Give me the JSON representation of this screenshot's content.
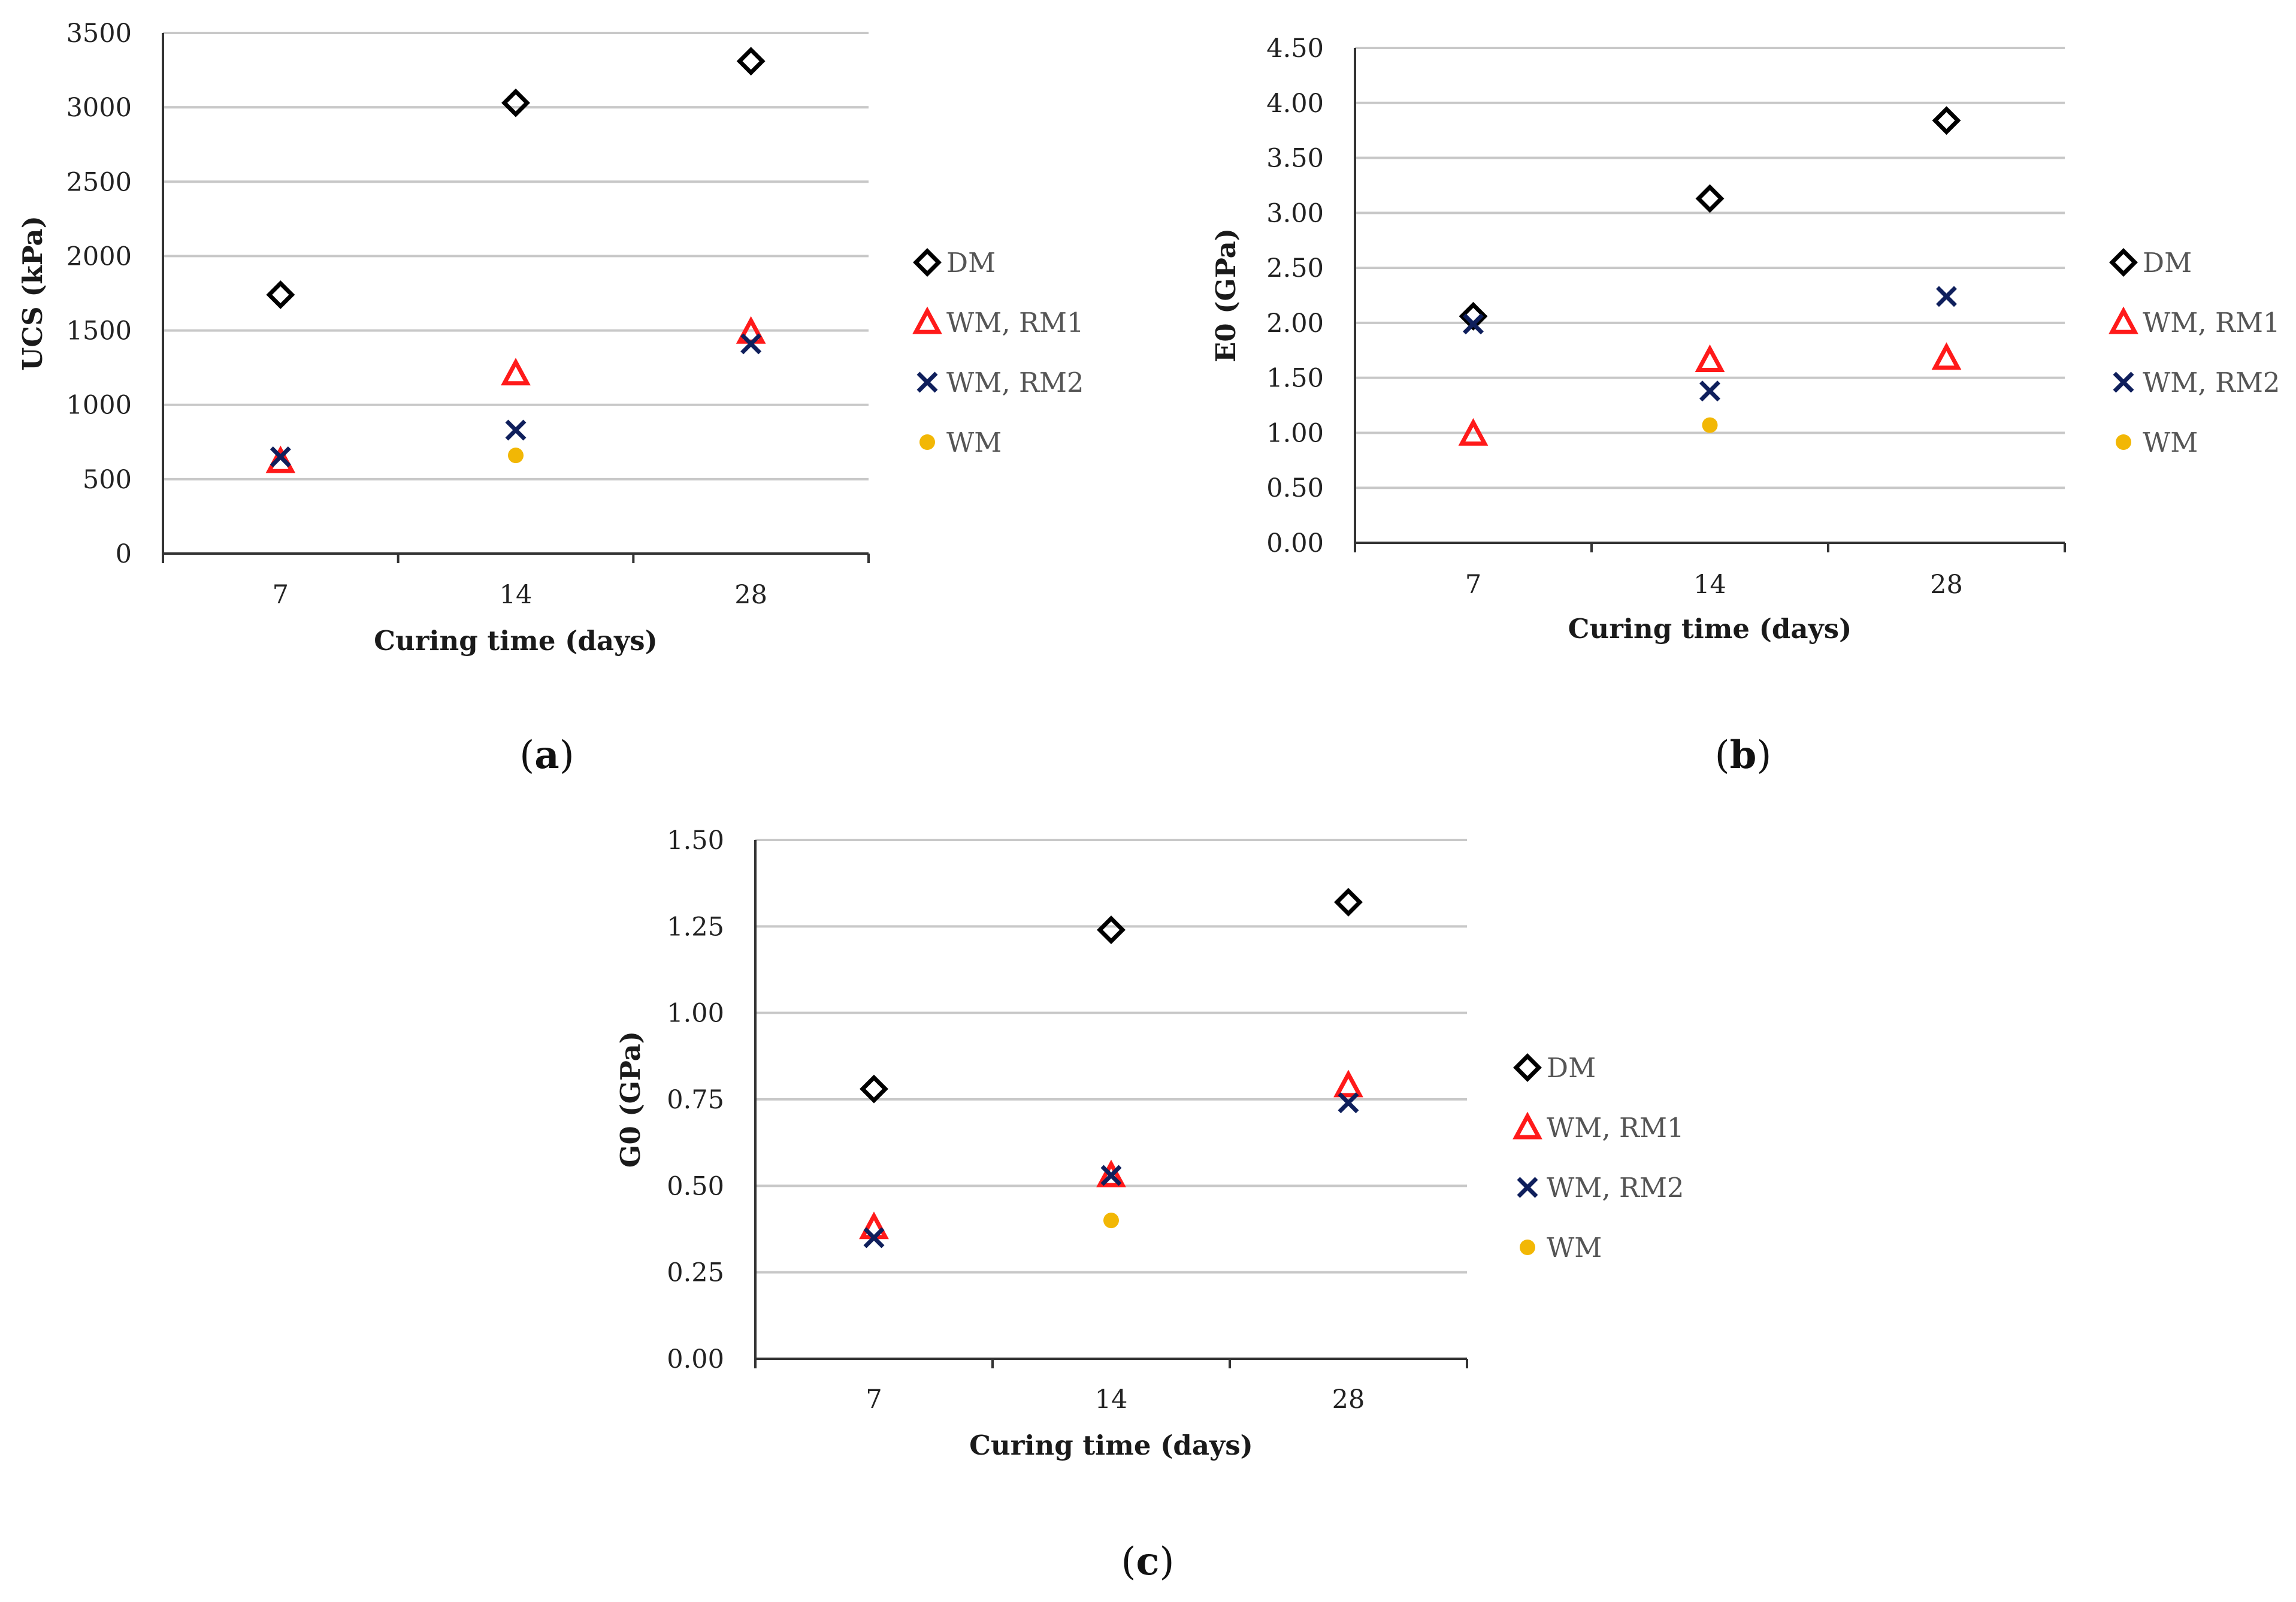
{
  "colors": {
    "DM": "#000000",
    "WM_RM1": "#ff1a1a",
    "WM_RM2": "#0f1f5c",
    "WM": "#f2b705",
    "grid": "#c8c8c8",
    "axis": "#333333"
  },
  "chart_data": [
    {
      "type": "scatter",
      "panel_label": "(a)",
      "panel_letter": "a",
      "xlabel": "Curing time (days)",
      "ylabel": "UCS (kPa)",
      "categories": [
        "7",
        "14",
        "28"
      ],
      "ylim": [
        0,
        3500
      ],
      "yticks": [
        "0",
        "500",
        "1000",
        "1500",
        "2000",
        "2500",
        "3000",
        "3500"
      ],
      "series": [
        {
          "name": "DM",
          "marker": "diamond",
          "values": [
            1740,
            3030,
            3310
          ]
        },
        {
          "name": "WM, RM1",
          "marker": "triangle",
          "values": [
            620,
            1210,
            1490
          ]
        },
        {
          "name": "WM, RM2",
          "marker": "cross",
          "values": [
            650,
            830,
            1410
          ]
        },
        {
          "name": "WM",
          "marker": "dot",
          "values": [
            null,
            660,
            null
          ]
        }
      ]
    },
    {
      "type": "scatter",
      "panel_label": "(b)",
      "panel_letter": "b",
      "xlabel": "Curing time (days)",
      "ylabel": "E0 (GPa)",
      "categories": [
        "7",
        "14",
        "28"
      ],
      "ylim": [
        0,
        4.5
      ],
      "yticks": [
        "0.00",
        "0.50",
        "1.00",
        "1.50",
        "2.00",
        "2.50",
        "3.00",
        "3.50",
        "4.00",
        "4.50"
      ],
      "series": [
        {
          "name": "DM",
          "marker": "diamond",
          "values": [
            2.06,
            3.13,
            3.84
          ]
        },
        {
          "name": "WM, RM1",
          "marker": "triangle",
          "values": [
            0.99,
            1.66,
            1.68
          ]
        },
        {
          "name": "WM, RM2",
          "marker": "cross",
          "values": [
            1.99,
            1.38,
            2.24
          ]
        },
        {
          "name": "WM",
          "marker": "dot",
          "values": [
            null,
            1.07,
            null
          ]
        }
      ]
    },
    {
      "type": "scatter",
      "panel_label": "(c)",
      "panel_letter": "c",
      "xlabel": "Curing time (days)",
      "ylabel": "G0 (GPa)",
      "categories": [
        "7",
        "14",
        "28"
      ],
      "ylim": [
        0,
        1.5
      ],
      "yticks": [
        "0.00",
        "0.25",
        "0.50",
        "0.75",
        "1.00",
        "1.25",
        "1.50"
      ],
      "series": [
        {
          "name": "DM",
          "marker": "diamond",
          "values": [
            0.78,
            1.24,
            1.32
          ]
        },
        {
          "name": "WM, RM1",
          "marker": "triangle",
          "values": [
            0.38,
            0.53,
            0.79
          ]
        },
        {
          "name": "WM, RM2",
          "marker": "cross",
          "values": [
            0.35,
            0.53,
            0.74
          ]
        },
        {
          "name": "WM",
          "marker": "dot",
          "values": [
            null,
            0.4,
            null
          ]
        }
      ]
    }
  ]
}
